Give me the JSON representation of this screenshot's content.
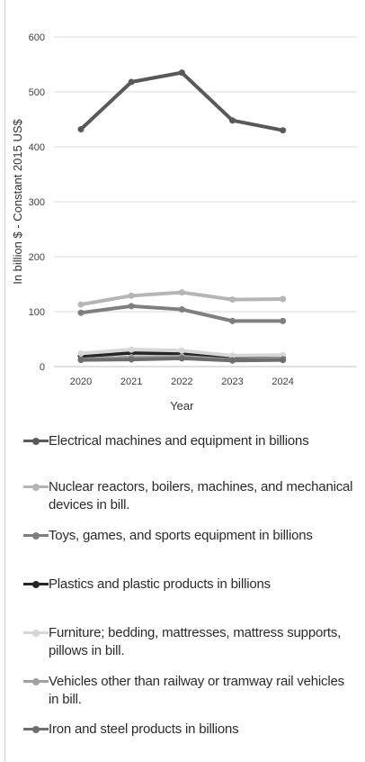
{
  "chart_data": {
    "type": "line",
    "xlabel": "Year",
    "ylabel": "In billion $ - Constant 2015 US$",
    "ylim": [
      0,
      600
    ],
    "yticks": [
      0,
      100,
      200,
      300,
      400,
      500,
      600
    ],
    "x": [
      "2020",
      "2021",
      "2022",
      "2023",
      "2024"
    ],
    "grid": true,
    "legend_position": "bottom",
    "series": [
      {
        "name": "Electrical machines and equipment in billions",
        "color": "#595959",
        "values": [
          432,
          518,
          535,
          448,
          430
        ]
      },
      {
        "name": "Nuclear reactors, boilers, machines, and mechanical devices in bill.",
        "color": "#b5b5b5",
        "values": [
          113,
          129,
          135,
          122,
          123
        ]
      },
      {
        "name": "Toys, games, and sports equipment in billions",
        "color": "#7f7f7f",
        "values": [
          98,
          110,
          104,
          83,
          83
        ]
      },
      {
        "name": "Plastics and plastic products in billions",
        "color": "#262626",
        "values": [
          19,
          25,
          24,
          15,
          16
        ]
      },
      {
        "name": "Furniture; bedding, mattresses, mattress supports, pillows in bill.",
        "color": "#d6d6d6",
        "values": [
          24,
          31,
          29,
          20,
          21
        ]
      },
      {
        "name": "Vehicles other than railway or tramway rail vehicles in bill.",
        "color": "#a0a0a0",
        "values": [
          13,
          17,
          18,
          12,
          14
        ]
      },
      {
        "name": "Iron and steel products in billions",
        "color": "#6e6e6e",
        "values": [
          12,
          13,
          15,
          11,
          12
        ]
      }
    ]
  }
}
